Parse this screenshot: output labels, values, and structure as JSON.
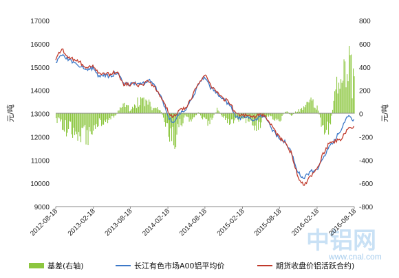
{
  "chart_data": {
    "type": "line",
    "ylabel_left": "元/吨",
    "ylabel_right": "元/吨",
    "y_left_range": [
      9000,
      17000
    ],
    "y_left_ticks": [
      "17000",
      "16000",
      "15000",
      "14000",
      "13000",
      "12000",
      "11000",
      "10000",
      "9000"
    ],
    "y_right_range": [
      -800,
      800
    ],
    "y_right_ticks": [
      "800",
      "600",
      "400",
      "200",
      "0",
      "-200",
      "-400",
      "-600",
      "-800"
    ],
    "x_range": [
      "2012-08-18",
      "2016-08-18"
    ],
    "x_ticks": [
      "2012-08-18",
      "2013-02-18",
      "2013-08-18",
      "2014-02-18",
      "2014-08-18",
      "2015-02-18",
      "2015-08-18",
      "2016-02-18",
      "2016-08-18"
    ],
    "grid": false,
    "legend_position": "bottom",
    "series": [
      {
        "name": "基差(右轴)",
        "kind": "bar",
        "axis": "right",
        "color": "#8cc63f",
        "points": [
          [
            "2012-08-18",
            -50
          ],
          [
            "2012-10-01",
            -150
          ],
          [
            "2012-12-01",
            -180
          ],
          [
            "2013-01-15",
            -220
          ],
          [
            "2013-02-18",
            -120
          ],
          [
            "2013-04-01",
            -80
          ],
          [
            "2013-06-01",
            -40
          ],
          [
            "2013-07-01",
            80
          ],
          [
            "2013-08-18",
            50
          ],
          [
            "2013-10-01",
            120
          ],
          [
            "2013-12-01",
            80
          ],
          [
            "2014-01-15",
            20
          ],
          [
            "2014-02-18",
            -200
          ],
          [
            "2014-03-15",
            -280
          ],
          [
            "2014-04-15",
            -120
          ],
          [
            "2014-05-15",
            -30
          ],
          [
            "2014-06-15",
            -80
          ],
          [
            "2014-07-15",
            20
          ],
          [
            "2014-08-18",
            -100
          ],
          [
            "2014-09-15",
            -60
          ],
          [
            "2014-10-15",
            40
          ],
          [
            "2014-11-15",
            -40
          ],
          [
            "2014-12-15",
            -80
          ],
          [
            "2015-01-15",
            -60
          ],
          [
            "2015-02-18",
            -50
          ],
          [
            "2015-03-15",
            -90
          ],
          [
            "2015-04-15",
            -130
          ],
          [
            "2015-05-15",
            -100
          ],
          [
            "2015-06-15",
            -20
          ],
          [
            "2015-07-15",
            -50
          ],
          [
            "2015-08-18",
            -70
          ],
          [
            "2015-09-15",
            30
          ],
          [
            "2015-10-15",
            -20
          ],
          [
            "2015-11-15",
            40
          ],
          [
            "2015-12-15",
            50
          ],
          [
            "2016-01-15",
            120
          ],
          [
            "2016-02-18",
            60
          ],
          [
            "2016-03-15",
            -150
          ],
          [
            "2016-04-15",
            -180
          ],
          [
            "2016-05-15",
            200
          ],
          [
            "2016-06-15",
            400
          ],
          [
            "2016-07-15",
            550
          ],
          [
            "2016-08-18",
            250
          ]
        ]
      },
      {
        "name": "长江有色市场A00铝平均价",
        "kind": "line",
        "axis": "left",
        "color": "#3c78c8",
        "points": [
          [
            "2012-08-18",
            15200
          ],
          [
            "2012-09-15",
            15550
          ],
          [
            "2012-10-15",
            15350
          ],
          [
            "2012-12-15",
            15050
          ],
          [
            "2013-01-15",
            14900
          ],
          [
            "2013-02-18",
            14950
          ],
          [
            "2013-03-15",
            14600
          ],
          [
            "2013-04-15",
            14650
          ],
          [
            "2013-05-15",
            14600
          ],
          [
            "2013-06-15",
            14800
          ],
          [
            "2013-07-15",
            14300
          ],
          [
            "2013-08-18",
            14250
          ],
          [
            "2013-09-15",
            14300
          ],
          [
            "2013-10-15",
            14250
          ],
          [
            "2013-11-15",
            14450
          ],
          [
            "2013-12-15",
            14200
          ],
          [
            "2014-01-15",
            13700
          ],
          [
            "2014-02-18",
            12900
          ],
          [
            "2014-03-15",
            12600
          ],
          [
            "2014-04-15",
            13000
          ],
          [
            "2014-05-15",
            13200
          ],
          [
            "2014-06-15",
            13600
          ],
          [
            "2014-07-15",
            14200
          ],
          [
            "2014-08-18",
            14600
          ],
          [
            "2014-09-15",
            14100
          ],
          [
            "2014-10-15",
            13900
          ],
          [
            "2014-11-15",
            13600
          ],
          [
            "2014-12-15",
            13400
          ],
          [
            "2015-01-15",
            12900
          ],
          [
            "2015-02-18",
            12800
          ],
          [
            "2015-03-15",
            12900
          ],
          [
            "2015-04-15",
            12700
          ],
          [
            "2015-05-15",
            12900
          ],
          [
            "2015-06-15",
            12800
          ],
          [
            "2015-07-15",
            12300
          ],
          [
            "2015-08-18",
            11900
          ],
          [
            "2015-09-15",
            11800
          ],
          [
            "2015-10-15",
            11300
          ],
          [
            "2015-11-15",
            10500
          ],
          [
            "2015-12-15",
            10200
          ],
          [
            "2016-01-15",
            10500
          ],
          [
            "2016-02-18",
            10600
          ],
          [
            "2016-03-15",
            11000
          ],
          [
            "2016-04-15",
            11500
          ],
          [
            "2016-05-15",
            11900
          ],
          [
            "2016-06-15",
            12300
          ],
          [
            "2016-07-15",
            12900
          ],
          [
            "2016-08-18",
            12700
          ]
        ]
      },
      {
        "name": "期货收盘价铝活跃合约)",
        "kind": "line",
        "axis": "left",
        "color": "#c0392b",
        "points": [
          [
            "2012-08-18",
            15300
          ],
          [
            "2012-09-15",
            15800
          ],
          [
            "2012-10-15",
            15450
          ],
          [
            "2012-12-15",
            15200
          ],
          [
            "2013-01-15",
            15000
          ],
          [
            "2013-02-18",
            15100
          ],
          [
            "2013-03-15",
            14700
          ],
          [
            "2013-04-15",
            14700
          ],
          [
            "2013-05-15",
            14700
          ],
          [
            "2013-06-15",
            14850
          ],
          [
            "2013-07-15",
            14250
          ],
          [
            "2013-08-18",
            14250
          ],
          [
            "2013-09-15",
            14250
          ],
          [
            "2013-10-15",
            14200
          ],
          [
            "2013-11-15",
            14400
          ],
          [
            "2013-12-15",
            14150
          ],
          [
            "2014-01-15",
            13750
          ],
          [
            "2014-02-18",
            13100
          ],
          [
            "2014-03-15",
            12850
          ],
          [
            "2014-04-15",
            13100
          ],
          [
            "2014-05-15",
            13250
          ],
          [
            "2014-06-15",
            13700
          ],
          [
            "2014-07-15",
            14250
          ],
          [
            "2014-08-18",
            14700
          ],
          [
            "2014-09-15",
            14200
          ],
          [
            "2014-10-15",
            13900
          ],
          [
            "2014-11-15",
            13650
          ],
          [
            "2014-12-15",
            13500
          ],
          [
            "2015-01-15",
            13000
          ],
          [
            "2015-02-18",
            12900
          ],
          [
            "2015-03-15",
            13000
          ],
          [
            "2015-04-15",
            12850
          ],
          [
            "2015-05-15",
            13000
          ],
          [
            "2015-06-15",
            12850
          ],
          [
            "2015-07-15",
            12400
          ],
          [
            "2015-08-18",
            11950
          ],
          [
            "2015-09-15",
            11750
          ],
          [
            "2015-10-15",
            11300
          ],
          [
            "2015-11-15",
            10300
          ],
          [
            "2015-12-15",
            9900
          ],
          [
            "2016-01-15",
            10300
          ],
          [
            "2016-02-18",
            10600
          ],
          [
            "2016-03-15",
            11200
          ],
          [
            "2016-04-15",
            11700
          ],
          [
            "2016-05-15",
            11800
          ],
          [
            "2016-06-15",
            11900
          ],
          [
            "2016-07-15",
            12300
          ],
          [
            "2016-08-18",
            12400
          ]
        ]
      }
    ]
  },
  "watermark": {
    "brand": "中铝网",
    "site": "www.cnal.com"
  }
}
